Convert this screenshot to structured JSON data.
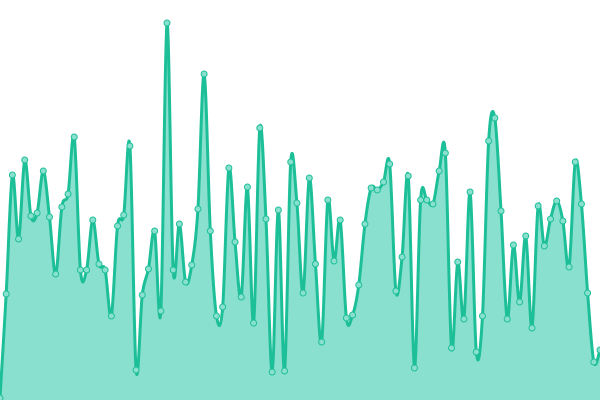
{
  "chart_data": {
    "type": "area",
    "smooth": true,
    "markers": true,
    "grid": false,
    "axes_visible": false,
    "legend": "none",
    "ylim": [
      0,
      100
    ],
    "colors": {
      "line": "#1dbf98",
      "fill": "#8ae0cf",
      "marker_fill": "#8ae0cf",
      "marker_stroke": "#1dbf98"
    },
    "values": [
      0.5,
      26.5,
      56.25,
      40.25,
      60,
      46,
      46.75,
      57.25,
      45.75,
      31.5,
      48.25,
      51.5,
      65.75,
      32.5,
      32.5,
      45,
      34,
      32.5,
      21,
      43.5,
      46.25,
      63.5,
      7.5,
      26.25,
      32.75,
      42.25,
      22.25,
      94.25,
      32.5,
      44,
      29.5,
      33.75,
      47.75,
      81.5,
      42.25,
      21,
      23.25,
      58,
      39.5,
      25.75,
      53.25,
      19.25,
      68,
      45.25,
      7,
      47.5,
      7.25,
      59.5,
      49.25,
      26.75,
      55.5,
      34,
      14.5,
      50,
      34.75,
      45,
      20.5,
      21.25,
      28.75,
      44,
      53,
      52.5,
      54.5,
      59,
      27.25,
      35.75,
      56,
      8,
      50,
      50,
      49,
      57.25,
      61.75,
      13,
      34.5,
      20.25,
      52,
      12,
      21,
      64.75,
      70.5,
      47.25,
      20.25,
      38.75,
      24.5,
      41,
      18,
      48.5,
      38.5,
      45.25,
      49.75,
      44.75,
      33.25,
      59.5,
      49,
      26.75,
      9.5,
      12.5
    ]
  }
}
